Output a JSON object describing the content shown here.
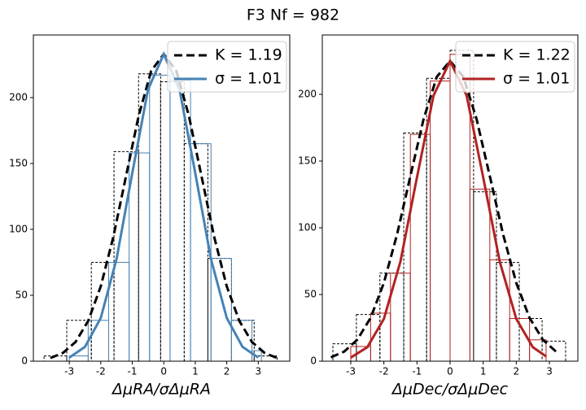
{
  "title": "F3   Nf = 982",
  "chart_data": [
    {
      "type": "histogram",
      "xlabel": "ΔμRA/σΔμRA",
      "xlim": [
        -4.14,
        4.0
      ],
      "ylim": [
        0,
        247.5
      ],
      "xticks": [
        -3,
        -2,
        -1,
        0,
        1,
        2,
        3
      ],
      "yticks": [
        0,
        50,
        100,
        150,
        200
      ],
      "legend": "upper right",
      "histograms": [
        {
          "color": "#000000",
          "linestyle": "dashed",
          "bins": [
            -3.8,
            -3.08,
            -2.3,
            -1.58,
            -0.8,
            -0.1,
            0.65,
            1.4,
            2.15,
            2.87,
            3.6
          ],
          "values": [
            4,
            31,
            75,
            159,
            218,
            212,
            165,
            78,
            31,
            4
          ]
        },
        {
          "color": "#4682b4",
          "linestyle": "solid",
          "bins": [
            -3.0,
            -2.4,
            -1.75,
            -1.1,
            -0.45,
            0.2,
            0.85,
            1.5,
            2.15,
            2.8,
            3.1
          ],
          "values": [
            4,
            31,
            75,
            158,
            217,
            213,
            165,
            78,
            31,
            8
          ]
        }
      ],
      "series": [
        {
          "name": "K = 1.19",
          "color": "#000000",
          "linestyle": "dashed",
          "x": [
            -3.6,
            -3.2,
            -2.8,
            -2.4,
            -2,
            -1.6,
            -1.2,
            -0.8,
            -0.4,
            0,
            0.4,
            0.8,
            1.2,
            1.6,
            2,
            2.4,
            2.8,
            3.2,
            3.6
          ],
          "values": [
            2.4,
            6.3,
            14.6,
            30.5,
            56.8,
            94.4,
            140.2,
            185.9,
            220.2,
            233,
            220.2,
            185.9,
            140.2,
            94.4,
            56.8,
            30.5,
            14.6,
            6.3,
            2.4
          ]
        },
        {
          "name": "σ = 1.01",
          "color": "#4682b4",
          "linestyle": "solid",
          "x": [
            -3,
            -2.5,
            -2,
            -1.5,
            -1,
            -0.5,
            0,
            0.5,
            1,
            1.5,
            2,
            2.5,
            3
          ],
          "values": [
            2.8,
            10.9,
            32.8,
            77.4,
            142.7,
            206.1,
            233,
            206.1,
            142.7,
            77.4,
            32.8,
            10.9,
            2.8
          ]
        }
      ]
    },
    {
      "type": "histogram",
      "xlabel": "ΔμDec/σΔμDec",
      "xlim": [
        -3.86,
        3.86
      ],
      "ylim": [
        0,
        244.5
      ],
      "xticks": [
        -3,
        -2,
        -1,
        0,
        1,
        2,
        3
      ],
      "yticks": [
        0,
        50,
        100,
        150,
        200
      ],
      "legend": "upper right",
      "histograms": [
        {
          "color": "#000000",
          "linestyle": "dashed",
          "bins": [
            -3.54,
            -2.83,
            -2.12,
            -1.4,
            -0.71,
            0,
            0.71,
            1.4,
            2.09,
            2.78,
            3.49
          ],
          "values": [
            13,
            35,
            66,
            171,
            212,
            233,
            127,
            74,
            32,
            15
          ]
        },
        {
          "color": "#b22222",
          "linestyle": "solid",
          "bins": [
            -3.0,
            -2.4,
            -1.8,
            -1.2,
            -0.6,
            0,
            0.6,
            1.2,
            1.8,
            2.4,
            2.9
          ],
          "values": [
            11,
            36,
            66,
            170,
            210,
            230,
            129,
            76,
            32,
            16
          ]
        }
      ],
      "series": [
        {
          "name": "K = 1.22",
          "color": "#000000",
          "linestyle": "dashed",
          "x": [
            -3.6,
            -3.2,
            -2.8,
            -2.4,
            -2,
            -1.6,
            -1.2,
            -0.8,
            -0.4,
            0,
            0.4,
            0.8,
            1.2,
            1.6,
            2,
            2.4,
            2.8,
            3.2
          ],
          "values": [
            2.9,
            7.2,
            16.2,
            32.5,
            58.7,
            95.2,
            138.7,
            181.5,
            213.2,
            225,
            213.2,
            181.5,
            138.7,
            95.2,
            58.7,
            32.5,
            16.2,
            7.2
          ]
        },
        {
          "name": "σ = 1.01",
          "color": "#b22222",
          "linestyle": "solid",
          "x": [
            -3,
            -2.5,
            -2,
            -1.5,
            -1,
            -0.5,
            0,
            0.5,
            1,
            1.5,
            2,
            2.5,
            2.9
          ],
          "values": [
            2.7,
            10.5,
            31.7,
            74.7,
            137.8,
            199.1,
            225,
            199.1,
            137.8,
            74.7,
            31.7,
            10.5,
            3.6
          ]
        }
      ]
    }
  ]
}
